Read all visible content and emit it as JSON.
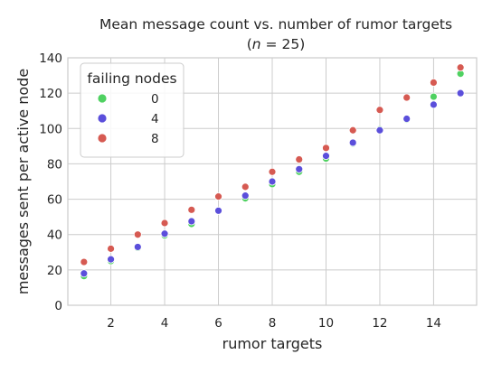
{
  "chart_data": {
    "type": "scatter",
    "title": "Mean message count vs. number of rumor targets",
    "subtitle_prefix": "(",
    "subtitle_var": "n",
    "subtitle_rest": " = 25)",
    "xlabel": "rumor targets",
    "ylabel": "messages sent per active node",
    "xlim": [
      0.4,
      15.6
    ],
    "ylim": [
      0,
      140
    ],
    "xticks": [
      2,
      4,
      6,
      8,
      10,
      12,
      14
    ],
    "yticks": [
      0,
      20,
      40,
      60,
      80,
      100,
      120,
      140
    ],
    "grid": true,
    "legend": {
      "title": "failing nodes",
      "placement": "top-left"
    },
    "x": [
      1,
      2,
      3,
      4,
      5,
      6,
      7,
      8,
      9,
      10,
      11,
      12,
      13,
      14,
      15
    ],
    "series": [
      {
        "name": "0",
        "color": "#4fd161",
        "values": [
          16.5,
          25,
          32.5,
          39.5,
          46,
          53.5,
          60.5,
          68.5,
          75.5,
          83,
          91.5,
          99.5,
          105,
          118,
          131
        ]
      },
      {
        "name": "4",
        "color": "#5b4fdb",
        "values": [
          18,
          26,
          33,
          40.5,
          47.5,
          53.5,
          62,
          70,
          77,
          84.5,
          92,
          99,
          105.5,
          113.5,
          120
        ]
      },
      {
        "name": "8",
        "color": "#d65a52",
        "values": [
          24.5,
          32,
          40,
          46.5,
          54,
          61.5,
          67,
          75.5,
          82.5,
          89,
          99,
          110.5,
          117.5,
          126,
          134.5
        ]
      }
    ]
  }
}
